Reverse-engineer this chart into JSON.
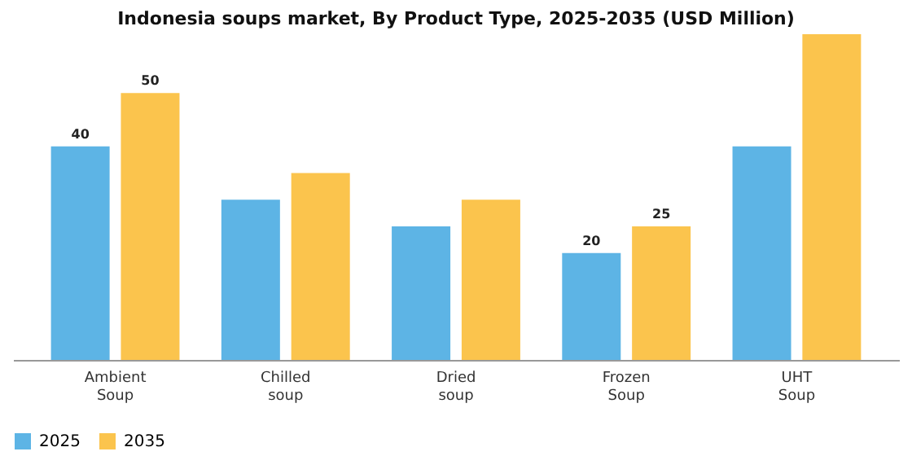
{
  "chart_data": {
    "type": "bar",
    "title": "Indonesia soups market, By Product Type, 2025-2035 (USD Million)",
    "categories": [
      "Ambient Soup",
      "Chilled soup",
      "Dried soup",
      "Frozen Soup",
      "UHT Soup"
    ],
    "series": [
      {
        "name": "2025",
        "color": "#5db4e5",
        "values": [
          40,
          30,
          25,
          20,
          40
        ],
        "value_labels": [
          "40",
          null,
          null,
          "20",
          null
        ]
      },
      {
        "name": "2035",
        "color": "#fbc44d",
        "values": [
          50,
          35,
          30,
          25,
          61
        ],
        "value_labels": [
          "50",
          null,
          null,
          "25",
          null
        ]
      }
    ],
    "tick_labels": "x",
    "legend": "bottom"
  }
}
